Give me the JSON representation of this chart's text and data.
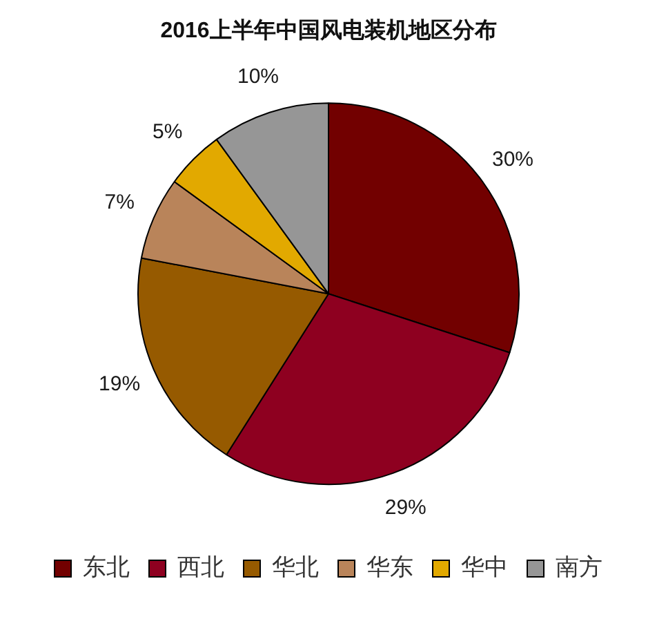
{
  "chart_data": {
    "type": "pie",
    "title": "2016上半年中国风电装机地区分布",
    "categories": [
      "东北",
      "西北",
      "华北",
      "华东",
      "华中",
      "南方"
    ],
    "values": [
      30,
      29,
      19,
      7,
      5,
      10
    ],
    "colors": [
      "#720000",
      "#8e0020",
      "#965a00",
      "#b9845a",
      "#e2a900",
      "#969696"
    ],
    "value_labels": [
      "30%",
      "29%",
      "19%",
      "7%",
      "5%",
      "10%"
    ],
    "legend": "bottom"
  }
}
